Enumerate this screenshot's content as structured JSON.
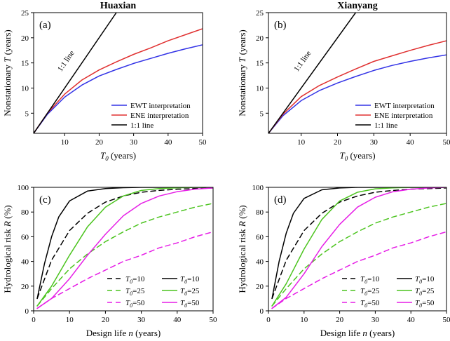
{
  "chart_data": [
    {
      "id": "a",
      "type": "line",
      "panel_label": "(a)",
      "title": "Huaxian",
      "xlabel_main": "T",
      "xlabel_sub": "0",
      "xlabel_rest": " (years)",
      "ylabel_pre": "Nonstationary ",
      "ylabel_italic": "T",
      "ylabel_post": " (years)",
      "xlim": [
        1,
        50
      ],
      "ylim": [
        1,
        25
      ],
      "xticks": [
        10,
        20,
        30,
        40,
        50
      ],
      "yticks": [
        5,
        10,
        15,
        20,
        25
      ],
      "grid": false,
      "legend_position": "bottom-right",
      "line_annotation": "1:1 line",
      "series": [
        {
          "name": "EWT interpretation",
          "color": "#3333e6",
          "dash": "solid",
          "x": [
            1,
            5,
            10,
            15,
            20,
            25,
            30,
            35,
            40,
            45,
            50
          ],
          "y": [
            1,
            4.8,
            8.2,
            10.6,
            12.4,
            13.7,
            14.9,
            15.9,
            16.9,
            17.8,
            18.6
          ]
        },
        {
          "name": "ENE interpretation",
          "color": "#e03030",
          "dash": "solid",
          "x": [
            1,
            5,
            10,
            15,
            20,
            25,
            30,
            35,
            40,
            45,
            50
          ],
          "y": [
            1,
            5.0,
            8.8,
            11.6,
            13.6,
            15.2,
            16.7,
            18.0,
            19.4,
            20.6,
            21.8
          ]
        },
        {
          "name": "1:1 line",
          "color": "#000000",
          "dash": "solid",
          "x": [
            1,
            25
          ],
          "y": [
            1,
            25
          ]
        }
      ]
    },
    {
      "id": "b",
      "type": "line",
      "panel_label": "(b)",
      "title": "Xianyang",
      "xlabel_main": "T",
      "xlabel_sub": "0",
      "xlabel_rest": " (years)",
      "ylabel_pre": "Nonstationary ",
      "ylabel_italic": "T",
      "ylabel_post": " (years)",
      "xlim": [
        1,
        50
      ],
      "ylim": [
        1,
        25
      ],
      "xticks": [
        10,
        20,
        30,
        40,
        50
      ],
      "yticks": [
        5,
        10,
        15,
        20,
        25
      ],
      "grid": false,
      "legend_position": "bottom-right",
      "line_annotation": "1:1 line",
      "series": [
        {
          "name": "EWT interpretation",
          "color": "#3333e6",
          "dash": "solid",
          "x": [
            1,
            5,
            10,
            15,
            20,
            25,
            30,
            35,
            40,
            45,
            50
          ],
          "y": [
            1,
            4.5,
            7.5,
            9.5,
            11.0,
            12.3,
            13.5,
            14.5,
            15.3,
            16.0,
            16.6
          ]
        },
        {
          "name": "ENE interpretation",
          "color": "#e03030",
          "dash": "solid",
          "x": [
            1,
            5,
            10,
            15,
            20,
            25,
            30,
            35,
            40,
            45,
            50
          ],
          "y": [
            1,
            4.8,
            8.3,
            10.5,
            12.2,
            13.8,
            15.3,
            16.4,
            17.5,
            18.5,
            19.4
          ]
        },
        {
          "name": "1:1 line",
          "color": "#000000",
          "dash": "solid",
          "x": [
            1,
            25
          ],
          "y": [
            1,
            25
          ]
        }
      ]
    },
    {
      "id": "c",
      "type": "line",
      "panel_label": "(c)",
      "xlabel_main": "Design life ",
      "xlabel_italic": "n",
      "xlabel_rest": " (years)",
      "ylabel_pre": "Hydrological risk ",
      "ylabel_italic": "R",
      "ylabel_post": " (%)",
      "xlim": [
        0,
        50
      ],
      "ylim": [
        0,
        100
      ],
      "xticks": [
        0,
        10,
        20,
        30,
        40,
        50
      ],
      "yticks": [
        0,
        20,
        40,
        60,
        80,
        100
      ],
      "grid": false,
      "legend_position": "bottom-right",
      "legend_prefix": "T",
      "legend_sub": "0",
      "series": [
        {
          "name": "=10",
          "color": "#000000",
          "dash": "dashed",
          "x": [
            1,
            5,
            10,
            15,
            20,
            25,
            30,
            35,
            40,
            45,
            50
          ],
          "y": [
            10,
            41,
            65,
            79,
            88,
            93,
            96,
            97.5,
            98.5,
            99,
            99.5
          ]
        },
        {
          "name": "=25",
          "color": "#4cc41f",
          "dash": "dashed",
          "x": [
            1,
            5,
            10,
            15,
            20,
            25,
            30,
            35,
            40,
            45,
            50
          ],
          "y": [
            4,
            18,
            34,
            46,
            56,
            64,
            71,
            76,
            80,
            84,
            87
          ]
        },
        {
          "name": "=50",
          "color": "#e61ee6",
          "dash": "dashed",
          "x": [
            1,
            5,
            10,
            15,
            20,
            25,
            30,
            35,
            40,
            45,
            50
          ],
          "y": [
            2,
            10,
            18,
            26,
            33,
            40,
            45,
            51,
            55,
            60,
            64
          ]
        },
        {
          "name": "=10",
          "color": "#000000",
          "dash": "solid",
          "x": [
            1,
            3,
            5,
            7,
            10,
            15,
            20,
            25,
            30,
            40,
            50
          ],
          "y": [
            10,
            38,
            60,
            76,
            89,
            97,
            99,
            99.7,
            100,
            100,
            100
          ]
        },
        {
          "name": "=25",
          "color": "#4cc41f",
          "dash": "solid",
          "x": [
            1,
            5,
            10,
            15,
            20,
            25,
            30,
            35,
            40,
            45,
            50
          ],
          "y": [
            4,
            20,
            45,
            68,
            84,
            93,
            97.5,
            99,
            99.6,
            100,
            100
          ]
        },
        {
          "name": "=50",
          "color": "#e61ee6",
          "dash": "solid",
          "x": [
            1,
            5,
            10,
            15,
            20,
            25,
            30,
            35,
            40,
            45,
            50
          ],
          "y": [
            2,
            10,
            26,
            45,
            62,
            77,
            87,
            93,
            96.5,
            98.5,
            99.5
          ]
        }
      ]
    },
    {
      "id": "d",
      "type": "line",
      "panel_label": "(d)",
      "xlabel_main": "Design life ",
      "xlabel_italic": "n",
      "xlabel_rest": " (years)",
      "ylabel_pre": "Hydrological risk ",
      "ylabel_italic": "R",
      "ylabel_post": " (%)",
      "xlim": [
        0,
        50
      ],
      "ylim": [
        0,
        100
      ],
      "xticks": [
        0,
        10,
        20,
        30,
        40,
        50
      ],
      "yticks": [
        0,
        20,
        40,
        60,
        80,
        100
      ],
      "grid": false,
      "legend_position": "bottom-right",
      "legend_prefix": "T",
      "legend_sub": "0",
      "series": [
        {
          "name": "=10",
          "color": "#000000",
          "dash": "dashed",
          "x": [
            1,
            5,
            10,
            15,
            20,
            25,
            30,
            35,
            40,
            45,
            50
          ],
          "y": [
            10,
            41,
            65,
            79,
            88,
            93,
            96,
            97.5,
            98.5,
            99,
            99.5
          ]
        },
        {
          "name": "=25",
          "color": "#4cc41f",
          "dash": "dashed",
          "x": [
            1,
            5,
            10,
            15,
            20,
            25,
            30,
            35,
            40,
            45,
            50
          ],
          "y": [
            4,
            18,
            34,
            46,
            56,
            64,
            71,
            76,
            80,
            84,
            87
          ]
        },
        {
          "name": "=50",
          "color": "#e61ee6",
          "dash": "dashed",
          "x": [
            1,
            5,
            10,
            15,
            20,
            25,
            30,
            35,
            40,
            45,
            50
          ],
          "y": [
            2,
            10,
            18,
            26,
            33,
            40,
            45,
            51,
            55,
            60,
            64
          ]
        },
        {
          "name": "=10",
          "color": "#000000",
          "dash": "solid",
          "x": [
            1,
            3,
            5,
            7,
            10,
            15,
            20,
            25,
            30,
            40,
            50
          ],
          "y": [
            10,
            40,
            63,
            79,
            91,
            98,
            99.5,
            100,
            100,
            100,
            100
          ]
        },
        {
          "name": "=25",
          "color": "#4cc41f",
          "dash": "solid",
          "x": [
            1,
            5,
            10,
            15,
            20,
            25,
            30,
            35,
            40,
            45,
            50
          ],
          "y": [
            4,
            22,
            50,
            74,
            89,
            96,
            98.8,
            99.6,
            100,
            100,
            100
          ]
        },
        {
          "name": "=50",
          "color": "#e61ee6",
          "dash": "solid",
          "x": [
            1,
            5,
            10,
            15,
            20,
            25,
            30,
            35,
            40,
            45,
            50
          ],
          "y": [
            2,
            11,
            30,
            52,
            70,
            84,
            92,
            96.5,
            98.5,
            99.5,
            100
          ]
        }
      ]
    }
  ]
}
